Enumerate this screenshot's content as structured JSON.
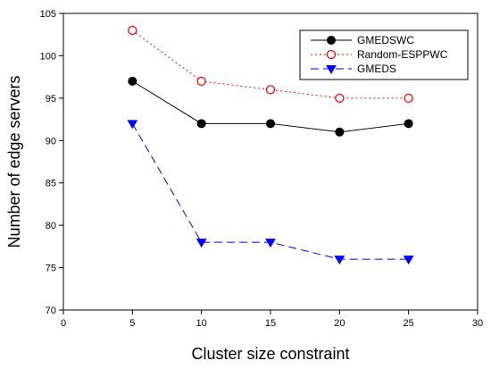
{
  "chart_data": {
    "type": "line",
    "title": "",
    "xlabel": "Cluster size constraint",
    "ylabel": "Number of edge servers",
    "xlim": [
      0,
      30
    ],
    "ylim": [
      70,
      105
    ],
    "xticks": [
      0,
      5,
      10,
      15,
      20,
      25,
      30
    ],
    "yticks": [
      70,
      75,
      80,
      85,
      90,
      95,
      100,
      105
    ],
    "x": [
      5,
      10,
      15,
      20,
      25
    ],
    "grid": false,
    "legend_position": "top-right",
    "series": [
      {
        "name": "GMEDSWC",
        "values": [
          97,
          92,
          92,
          91,
          92
        ],
        "color": "#000000",
        "line_style": "solid",
        "marker": "filled-circle"
      },
      {
        "name": "Random-ESPPWC",
        "values": [
          103,
          97,
          96,
          95,
          95
        ],
        "color": "#ff0000",
        "line_style": "dotted",
        "marker": "open-circle"
      },
      {
        "name": "GMEDS",
        "values": [
          92,
          78,
          78,
          76,
          76
        ],
        "color": "#0000ff",
        "line_style": "dashed",
        "marker": "filled-triangle-down"
      }
    ]
  }
}
